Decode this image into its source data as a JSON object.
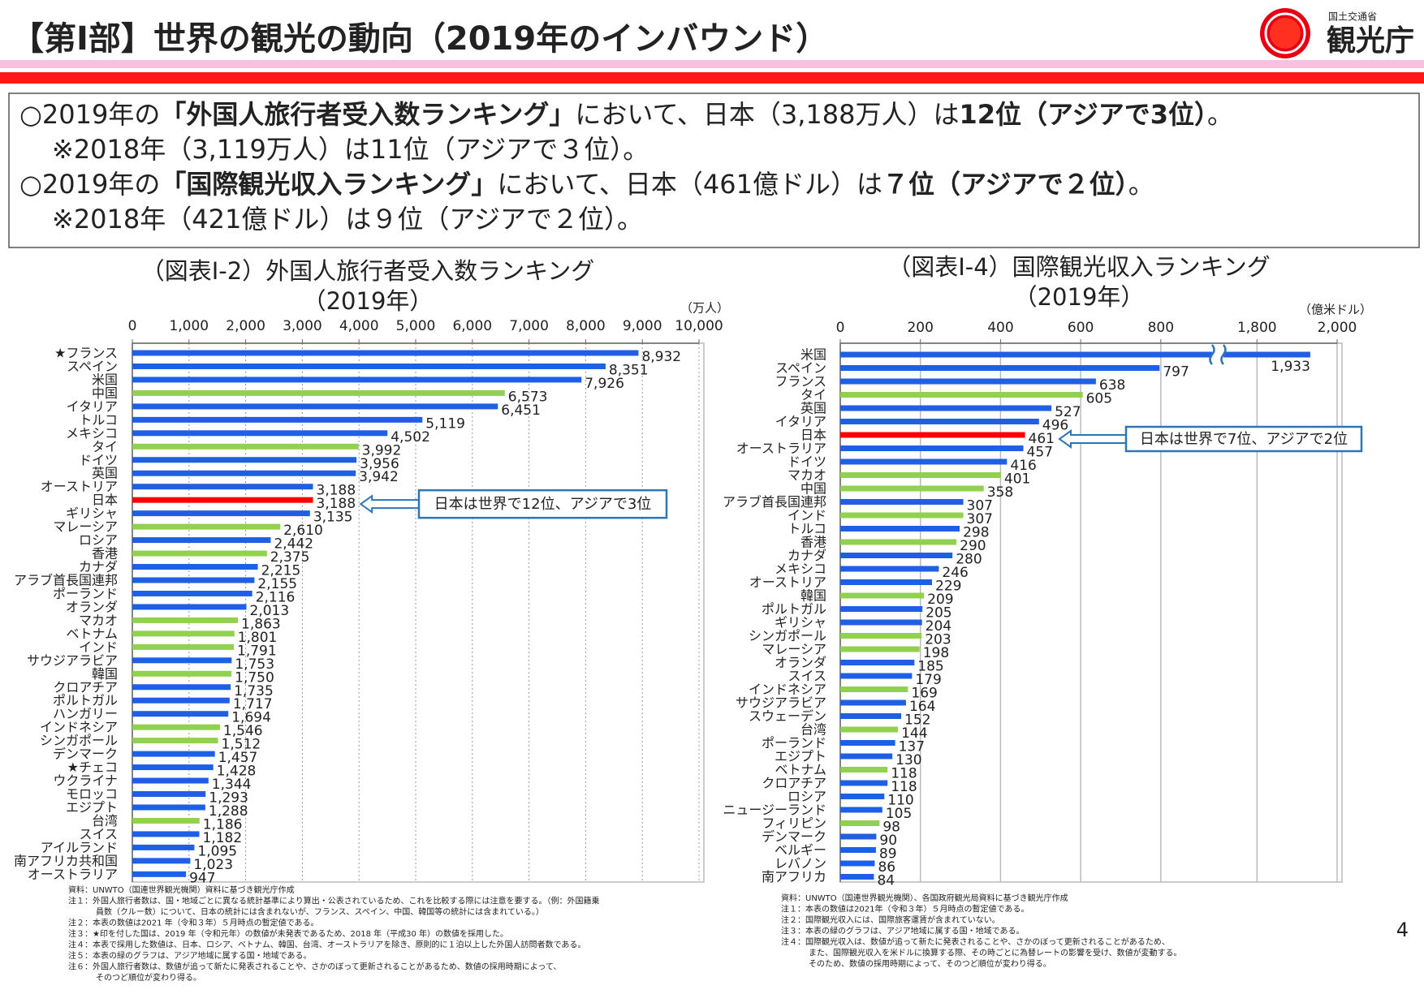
{
  "header": {
    "title": "【第Ⅰ部】世界の観光の動向（2019年のインバウンド）",
    "ministry": "国土交通省",
    "agency": "観光庁"
  },
  "summary": [
    [
      {
        "text": "○2019年の",
        "bold": false
      },
      {
        "text": "「外国人旅行者受入数ランキング」",
        "bold": true
      },
      {
        "text": "において、日本（3,188万人）は",
        "bold": false
      },
      {
        "text": "12位（アジアで3位）",
        "bold": true
      },
      {
        "text": "。",
        "bold": false
      }
    ],
    [
      {
        "text": "※2018年（3,119万人）は11位（アジアで３位）。",
        "bold": false
      }
    ],
    [
      {
        "text": "○2019年の",
        "bold": false
      },
      {
        "text": "「国際観光収入ランキング」",
        "bold": true
      },
      {
        "text": "において、日本（461億ドル）は",
        "bold": false
      },
      {
        "text": "７位（アジアで２位）",
        "bold": true
      },
      {
        "text": "。",
        "bold": false
      }
    ],
    [
      {
        "text": "※2018年（421億ドル）は９位（アジアで２位）。",
        "bold": false
      }
    ]
  ],
  "chart_data": [
    {
      "type": "hbar",
      "title": "（図表Ⅰ-2）外国人旅行者受入数ランキング",
      "subtitle": "（2019年）",
      "unit": "（万人）",
      "categories": [
        "★フランス",
        "スペイン",
        "米国",
        "中国",
        "イタリア",
        "トルコ",
        "メキシコ",
        "タイ",
        "ドイツ",
        "英国",
        "オーストリア",
        "日本",
        "ギリシャ",
        "マレーシア",
        "ロシア",
        "香港",
        "カナダ",
        "アラブ首長国連邦",
        "ポーランド",
        "オランダ",
        "マカオ",
        "ベトナム",
        "インド",
        "サウジアラビア",
        "韓国",
        "クロアチア",
        "ポルトガル",
        "ハンガリー",
        "インドネシア",
        "シンガポール",
        "デンマーク",
        "★チェコ",
        "ウクライナ",
        "モロッコ",
        "エジプト",
        "台湾",
        "スイス",
        "アイルランド",
        "南アフリカ共和国",
        "オーストラリア"
      ],
      "values": [
        8932,
        8351,
        7926,
        6573,
        6451,
        5119,
        4502,
        3992,
        3956,
        3942,
        3188,
        3188,
        3135,
        2610,
        2442,
        2375,
        2215,
        2155,
        2116,
        2013,
        1863,
        1801,
        1791,
        1753,
        1750,
        1735,
        1717,
        1694,
        1546,
        1512,
        1457,
        1428,
        1344,
        1293,
        1288,
        1186,
        1182,
        1095,
        1023,
        947
      ],
      "value_labels": [
        "8,932",
        "8,351",
        "7,926",
        "6,573",
        "6,451",
        "5,119",
        "4,502",
        "3,992",
        "3,956",
        "3,942",
        "3,188",
        "3,188",
        "3,135",
        "2,610",
        "2,442",
        "2,375",
        "2,215",
        "2,155",
        "2,116",
        "2,013",
        "1,863",
        "1,801",
        "1,791",
        "1,753",
        "1,750",
        "1,735",
        "1,717",
        "1,694",
        "1,546",
        "1,512",
        "1,457",
        "1,428",
        "1,344",
        "1,293",
        "1,288",
        "1,186",
        "1,182",
        "1,095",
        "1,023",
        "947"
      ],
      "colors": [
        "#1f5fe6",
        "#1f5fe6",
        "#1f5fe6",
        "#92d050",
        "#1f5fe6",
        "#1f5fe6",
        "#1f5fe6",
        "#92d050",
        "#1f5fe6",
        "#1f5fe6",
        "#1f5fe6",
        "#ff0000",
        "#1f5fe6",
        "#92d050",
        "#1f5fe6",
        "#92d050",
        "#1f5fe6",
        "#1f5fe6",
        "#1f5fe6",
        "#1f5fe6",
        "#92d050",
        "#92d050",
        "#92d050",
        "#1f5fe6",
        "#92d050",
        "#1f5fe6",
        "#1f5fe6",
        "#1f5fe6",
        "#92d050",
        "#92d050",
        "#1f5fe6",
        "#1f5fe6",
        "#1f5fe6",
        "#1f5fe6",
        "#1f5fe6",
        "#92d050",
        "#1f5fe6",
        "#1f5fe6",
        "#1f5fe6",
        "#1f5fe6"
      ],
      "xlim": [
        0,
        10000
      ],
      "xticks": [
        0,
        {
          "value": 1000,
          "label": "1,000"
        },
        {
          "value": 2000,
          "label": "2,000"
        },
        {
          "value": 3000,
          "label": "3,000"
        },
        {
          "value": 4000,
          "label": "4,000"
        },
        {
          "value": 5000,
          "label": "5,000"
        },
        {
          "value": 6000,
          "label": "6,000"
        },
        {
          "value": 7000,
          "label": "7,000"
        },
        {
          "value": 8000,
          "label": "8,000"
        },
        {
          "value": 9000,
          "label": "9,000"
        },
        {
          "value": 10000,
          "label": "10,000"
        }
      ],
      "grid": true,
      "grid_style": "dashed",
      "annotation": "日本は世界で12位、アジアで3位",
      "notes": [
        [
          "資料：UNWTO（国連世界観光機関）資料に基づき観光庁作成"
        ],
        [
          "注１：外国人旅行者数は、国・地域ごとに異なる統計基準により算出・公表されているため、これを比較する際には注意を要する。（例：外国籍乗",
          "員数（クルー数）について、日本の統計には含まれないが、フランス、スペイン、中国、韓国等の統計には含まれている。）"
        ],
        [
          "注２：本表の数値は2021 年（令和３年）５月時点の暫定値である。"
        ],
        [
          "注３：★印を付した国は、2019 年（令和元年）の数値が未発表であるため、2018 年（平成30 年）の数値を採用した。"
        ],
        [
          "注４：本表で採用した数値は、日本、ロシア、ベトナム、韓国、台湾、オーストラリアを除き、原則的に１泊以上した外国人訪問者数である。"
        ],
        [
          "注５：本表の緑のグラフは、アジア地域に属する国・地域である。"
        ],
        [
          "注６：外国人旅行者数は、数値が追って新たに発表されることや、さかのぼって更新されることがあるため、数値の採用時期によって、",
          "そのつど順位が変わり得る。"
        ]
      ]
    },
    {
      "type": "hbar",
      "title": "（図表Ⅰ-4）国際観光収入ランキング",
      "subtitle": "（2019年）",
      "unit": "（億米ドル）",
      "categories": [
        "米国",
        "スペイン",
        "フランス",
        "タイ",
        "英国",
        "イタリア",
        "日本",
        "オーストラリア",
        "ドイツ",
        "マカオ",
        "中国",
        "アラブ首長国連邦",
        "インド",
        "トルコ",
        "香港",
        "カナダ",
        "メキシコ",
        "オーストリア",
        "韓国",
        "ポルトガル",
        "ギリシャ",
        "シンガポール",
        "マレーシア",
        "オランダ",
        "スイス",
        "インドネシア",
        "サウジアラビア",
        "スウェーデン",
        "台湾",
        "ポーランド",
        "エジプト",
        "ベトナム",
        "クロアチア",
        "ロシア",
        "ニュージーランド",
        "フィリピン",
        "デンマーク",
        "ベルギー",
        "レバノン",
        "南アフリカ"
      ],
      "values": [
        1933,
        797,
        638,
        605,
        527,
        496,
        461,
        457,
        416,
        401,
        358,
        307,
        307,
        298,
        290,
        280,
        246,
        229,
        209,
        205,
        204,
        203,
        198,
        185,
        179,
        169,
        164,
        152,
        144,
        137,
        130,
        118,
        118,
        110,
        105,
        98,
        90,
        89,
        86,
        84
      ],
      "value_labels": [
        "1,933",
        "797",
        "638",
        "605",
        "527",
        "496",
        "461",
        "457",
        "416",
        "401",
        "358",
        "307",
        "307",
        "298",
        "290",
        "280",
        "246",
        "229",
        "209",
        "205",
        "204",
        "203",
        "198",
        "185",
        "179",
        "169",
        "164",
        "152",
        "144",
        "137",
        "130",
        "118",
        "118",
        "110",
        "105",
        "98",
        "90",
        "89",
        "86",
        "84"
      ],
      "colors": [
        "#1f5fe6",
        "#1f5fe6",
        "#1f5fe6",
        "#92d050",
        "#1f5fe6",
        "#1f5fe6",
        "#ff0000",
        "#1f5fe6",
        "#1f5fe6",
        "#92d050",
        "#92d050",
        "#1f5fe6",
        "#92d050",
        "#1f5fe6",
        "#92d050",
        "#1f5fe6",
        "#1f5fe6",
        "#1f5fe6",
        "#92d050",
        "#1f5fe6",
        "#1f5fe6",
        "#92d050",
        "#92d050",
        "#1f5fe6",
        "#1f5fe6",
        "#92d050",
        "#1f5fe6",
        "#1f5fe6",
        "#92d050",
        "#1f5fe6",
        "#1f5fe6",
        "#92d050",
        "#1f5fe6",
        "#1f5fe6",
        "#1f5fe6",
        "#92d050",
        "#1f5fe6",
        "#1f5fe6",
        "#1f5fe6",
        "#1f5fe6"
      ],
      "xlim": [
        0,
        2000
      ],
      "axis_break": [
        940,
        1700
      ],
      "xticks": [
        0,
        200,
        400,
        600,
        800,
        {
          "value": 1800,
          "label": "1,800"
        },
        {
          "value": 2000,
          "label": "2,000"
        }
      ],
      "grid": true,
      "grid_style": "solid",
      "annotation": "日本は世界で7位、アジアで2位",
      "notes": [
        [
          "資料：UNWTO（国連世界観光機関）、各国政府観光局資料に基づき観光庁作成"
        ],
        [
          "注１：本表の数値は2021年（令和３年）５月時点の暫定値である。"
        ],
        [
          "注２：国際観光収入には、国際旅客運賃が含まれていない。"
        ],
        [
          "注３：本表の緑のグラフは、アジア地域に属する国・地域である。"
        ],
        [
          "注４：国際観光収入は、数値が追って新たに発表されることや、さかのぼって更新されることがあるため、",
          "また、国際観光収入を米ドルに換算する際、その時ごとに為替レートの影響を受け、数値が変動する。",
          "そのため、数値の採用時期によって、そのつど順位が変わり得る。"
        ]
      ]
    }
  ],
  "page_number": "4"
}
